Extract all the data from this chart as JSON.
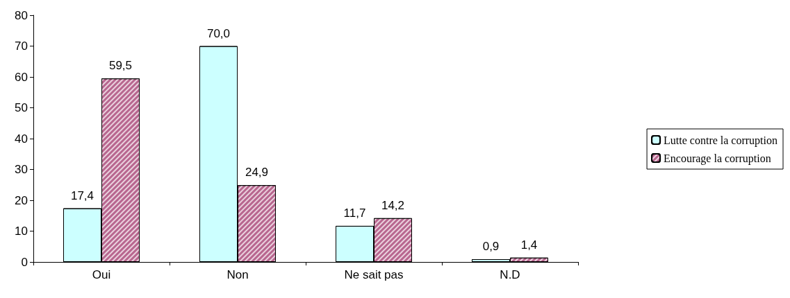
{
  "chart_data": {
    "type": "bar",
    "categories": [
      "Oui",
      "Non",
      "Ne sait pas",
      "N.D"
    ],
    "series": [
      {
        "name": "Lutte contre la corruption",
        "color": "#ccffff",
        "values": [
          17.4,
          70.0,
          11.7,
          0.9
        ],
        "value_labels": [
          "17,4",
          "70,0",
          "11,7",
          "0,9"
        ]
      },
      {
        "name": "Encourage la corruption",
        "color": "#b8668f",
        "values": [
          59.5,
          24.9,
          14.2,
          1.4
        ],
        "value_labels": [
          "59,5",
          "24,9",
          "14,2",
          "1,4"
        ]
      }
    ],
    "ylim": [
      0,
      80
    ],
    "yticks": [
      0,
      10,
      20,
      30,
      40,
      50,
      60,
      70,
      80
    ],
    "grid": false,
    "legend": "right"
  }
}
